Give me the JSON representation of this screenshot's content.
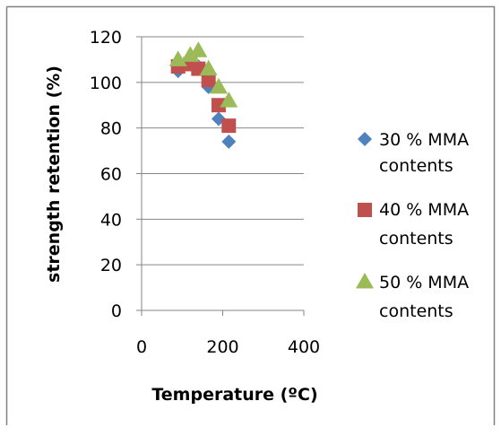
{
  "chart_data": {
    "type": "scatter",
    "title": "",
    "xlabel": "Temperature (ºC)",
    "ylabel": "strength retention (%)",
    "xlim": [
      0,
      400
    ],
    "ylim": [
      0,
      120
    ],
    "xticks": [
      "0",
      "200",
      "400"
    ],
    "yticks": [
      "0",
      "20",
      "40",
      "60",
      "80",
      "100",
      "120"
    ],
    "xtick_values": [
      0,
      200,
      400
    ],
    "ytick_values": [
      0,
      20,
      40,
      60,
      80,
      100,
      120
    ],
    "grid": "horizontal",
    "legend_position": "right",
    "series": [
      {
        "name": "30 % MMA contents",
        "marker": "diamond",
        "color": "#4F81BD",
        "points": [
          [
            90,
            105
          ],
          [
            120,
            108
          ],
          [
            140,
            107
          ],
          [
            165,
            98
          ],
          [
            190,
            84
          ],
          [
            215,
            74
          ]
        ]
      },
      {
        "name": "40 % MMA contents",
        "marker": "square",
        "color": "#C0504D",
        "points": [
          [
            90,
            107
          ],
          [
            120,
            108
          ],
          [
            140,
            106
          ],
          [
            165,
            101
          ],
          [
            190,
            90
          ],
          [
            215,
            81
          ]
        ]
      },
      {
        "name": "50 % MMA contents",
        "marker": "triangle",
        "color": "#9BBB59",
        "points": [
          [
            90,
            110
          ],
          [
            120,
            112
          ],
          [
            140,
            114
          ],
          [
            165,
            106
          ],
          [
            190,
            98
          ],
          [
            215,
            92
          ]
        ]
      }
    ]
  }
}
